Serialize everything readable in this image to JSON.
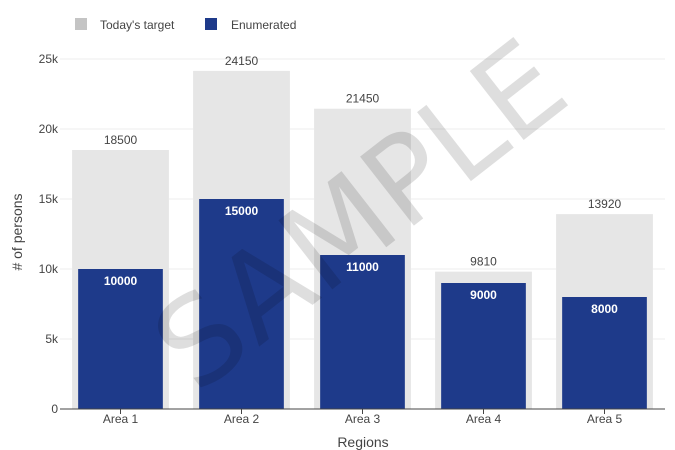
{
  "colors": {
    "target": "#e6e6e6",
    "target_legend": "#c4c4c4",
    "enumerated": "#1e3a8a",
    "grid": "#ececec",
    "axis": "#444444"
  },
  "legend": {
    "target_label": "Today's target",
    "enumerated_label": "Enumerated"
  },
  "watermark": "SAMPLE",
  "chart_data": {
    "type": "bar",
    "xlabel": "Regions",
    "ylabel": "# of persons",
    "ylim": [
      0,
      25000
    ],
    "yticks": [
      0,
      5000,
      10000,
      15000,
      20000,
      25000
    ],
    "ytick_labels": [
      "0",
      "5k",
      "10k",
      "15k",
      "20k",
      "25k"
    ],
    "grid": true,
    "legend_position": "top-left",
    "categories": [
      "Area 1",
      "Area 2",
      "Area 3",
      "Area 4",
      "Area 5"
    ],
    "series": [
      {
        "name": "Today's target",
        "values": [
          18500,
          24150,
          21450,
          9810,
          13920
        ]
      },
      {
        "name": "Enumerated",
        "values": [
          10000,
          15000,
          11000,
          9000,
          8000
        ]
      }
    ]
  }
}
